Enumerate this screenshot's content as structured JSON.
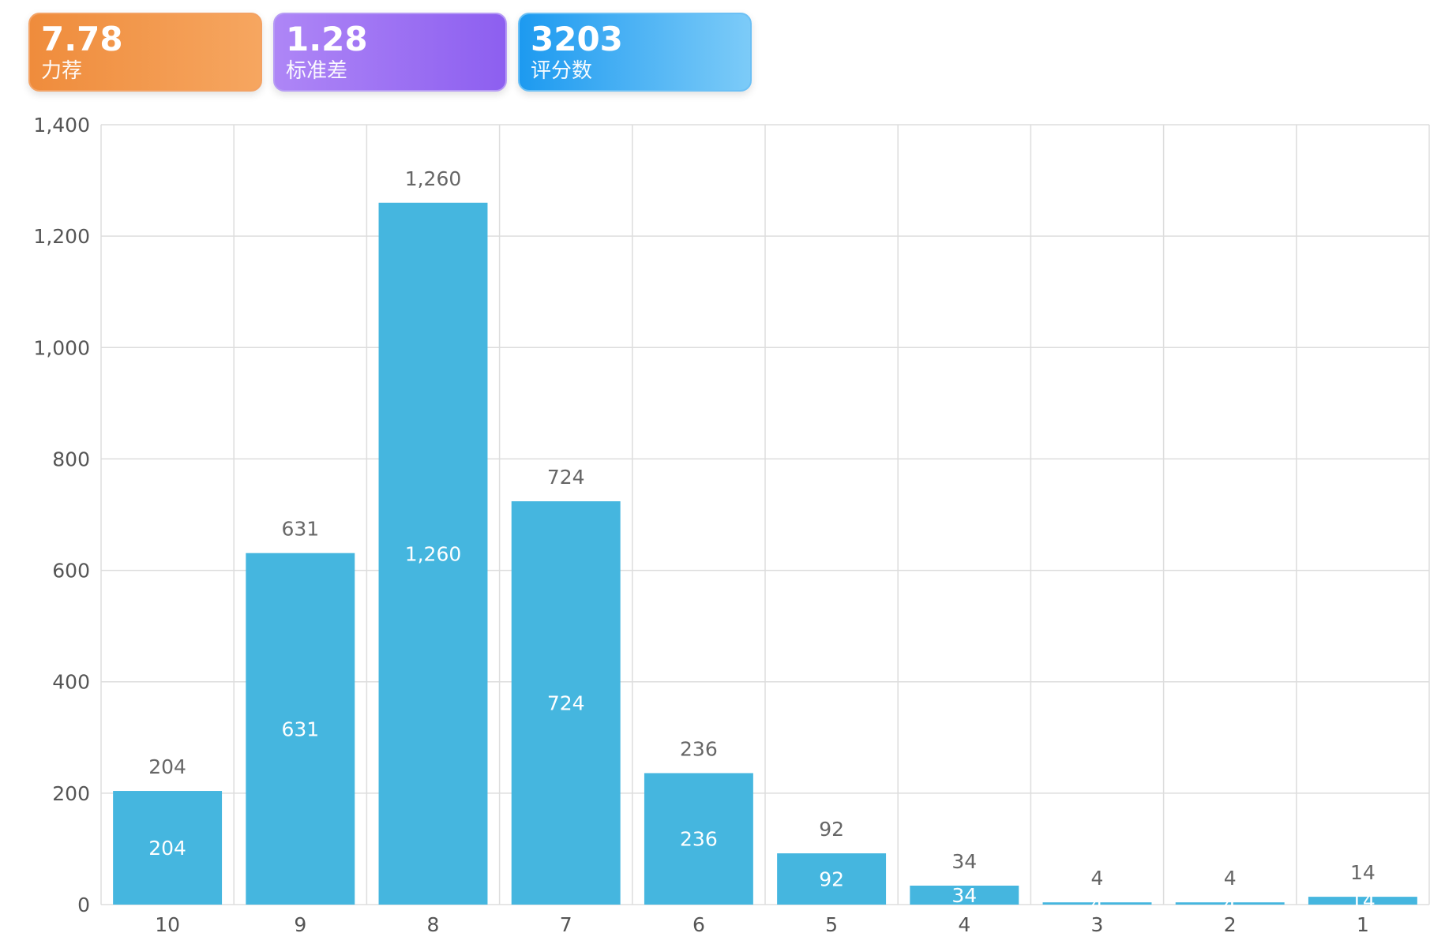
{
  "stats": [
    {
      "value": "7.78",
      "label": "力荐",
      "color": "#f39a4d"
    },
    {
      "value": "1.28",
      "label": "标准差",
      "color": "#9d72f3"
    },
    {
      "value": "3203",
      "label": "评分数",
      "color": "#3aabf4"
    }
  ],
  "chart_data": {
    "type": "bar",
    "categories": [
      "10",
      "9",
      "8",
      "7",
      "6",
      "5",
      "4",
      "3",
      "2",
      "1"
    ],
    "values": [
      204,
      631,
      1260,
      724,
      236,
      92,
      34,
      4,
      4,
      14
    ],
    "value_labels": [
      "204",
      "631",
      "1,260",
      "724",
      "236",
      "92",
      "34",
      "4",
      "4",
      "14"
    ],
    "ylim": [
      0,
      1400
    ],
    "yticks": [
      0,
      200,
      400,
      600,
      800,
      1000,
      1200,
      1400
    ],
    "ytick_labels": [
      "0",
      "200",
      "400",
      "600",
      "800",
      "1,000",
      "1,200",
      "1,400"
    ],
    "grid": true,
    "bar_color": "#45b6df",
    "title": "",
    "xlabel": "",
    "ylabel": ""
  }
}
